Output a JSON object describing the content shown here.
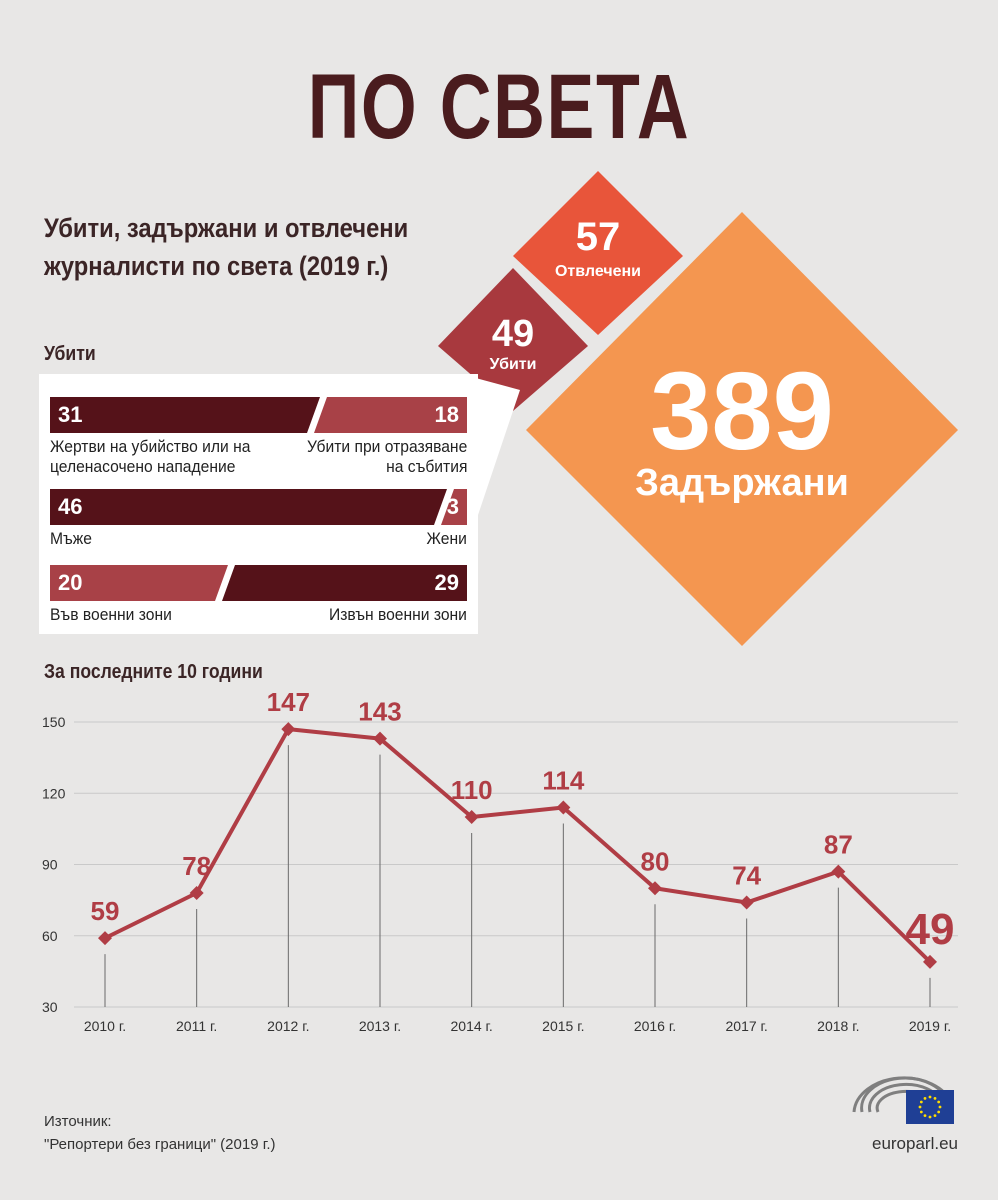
{
  "title": "ПО СВЕТА",
  "subtitle_line1": "Убити, задържани и отвлечени",
  "subtitle_line2": "журналисти по света (2019 г.)",
  "diamonds": {
    "abducted": {
      "value": "57",
      "label": "Отвлечени",
      "color": "#e8553a"
    },
    "killed": {
      "value": "49",
      "label": "Убити",
      "color": "#a8393e"
    },
    "detained": {
      "value": "389",
      "label": "Задържани",
      "color": "#f49650"
    }
  },
  "killed_section": {
    "heading": "Убити",
    "rows": [
      {
        "left_value": "31",
        "right_value": "18",
        "left_label_1": "Жертви на убийство или на",
        "left_label_2": "целенасочено нападение",
        "right_label_1": "Убити при отразяване",
        "right_label_2": "на събития"
      },
      {
        "left_value": "46",
        "right_value": "3",
        "left_label_1": "Мъже",
        "left_label_2": "",
        "right_label_1": "Жени",
        "right_label_2": ""
      },
      {
        "left_value": "20",
        "right_value": "29",
        "left_label_1": "Във военни зони",
        "left_label_2": "",
        "right_label_1": "Извън военни зони",
        "right_label_2": ""
      }
    ],
    "colors": {
      "dark": "#551219",
      "light": "#a84147"
    }
  },
  "chart_heading": "За последните 10 години",
  "chart_data": {
    "type": "line",
    "categories": [
      "2010 г.",
      "2011 г.",
      "2012 г.",
      "2013 г.",
      "2014 г.",
      "2015 г.",
      "2016 г.",
      "2017 г.",
      "2018 г.",
      "2019 г."
    ],
    "series": [
      {
        "values": [
          59,
          78,
          147,
          143,
          110,
          114,
          80,
          74,
          87,
          49
        ]
      }
    ],
    "y_ticks": [
      30,
      60,
      90,
      120,
      150
    ],
    "ylim": [
      30,
      150
    ],
    "grid": true,
    "line_color": "#b03d45"
  },
  "source_label": "Източник:",
  "source_text": "\"Репортери без граници\" (2019 г.)",
  "footer_url": "europarl.eu"
}
